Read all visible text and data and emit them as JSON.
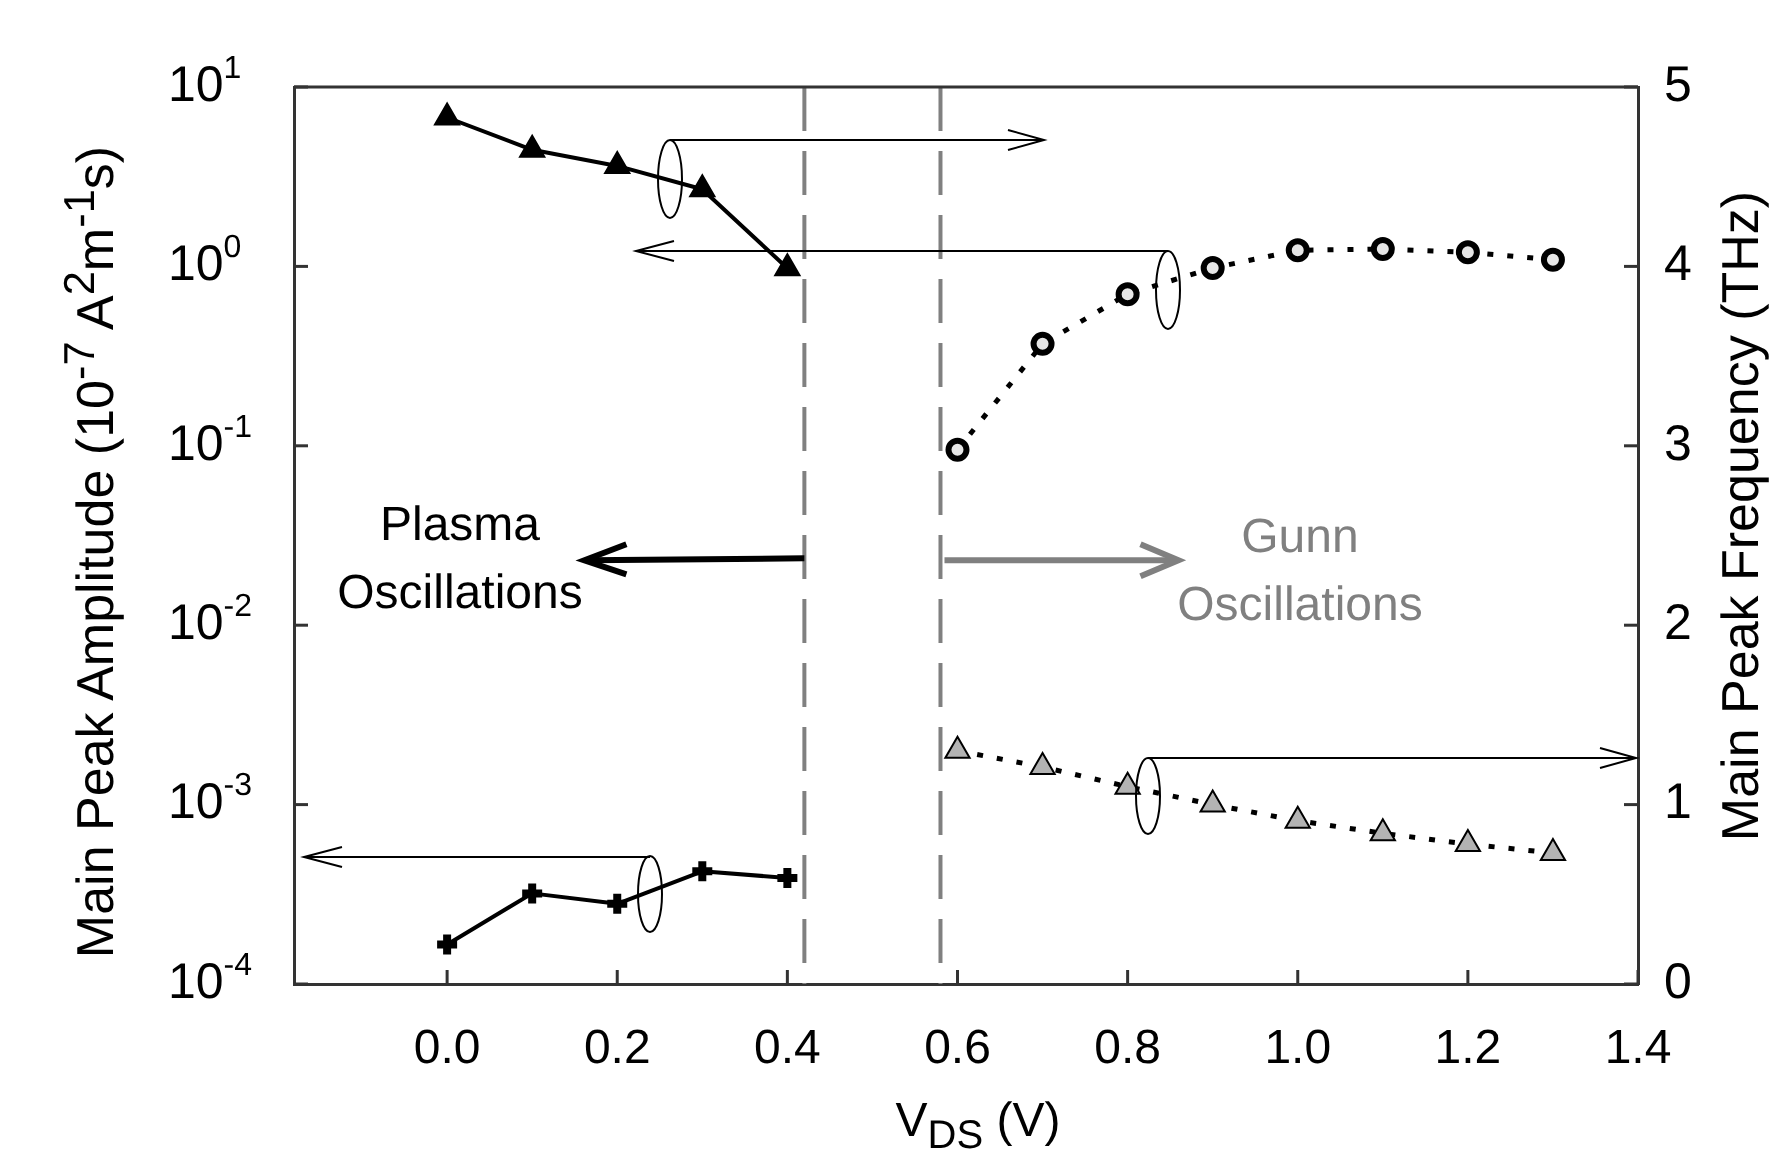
{
  "chart_data": {
    "type": "line",
    "xlabel": "V$_{DS}$ (V)",
    "ylabel": "Main Peak Amplitude (10$^{-7}$ A$^{2}$m$^{-1}$s)",
    "y2label": "Main Peak Frequency (THz)",
    "xlim": [
      -0.18,
      1.4
    ],
    "xticks": [
      {
        "value": 0,
        "label": "0.0"
      },
      0.2,
      0.4,
      0.6,
      0.8,
      {
        "value": 1,
        "label": "1.0"
      },
      1.2,
      1.4
    ],
    "ylim": [
      0.0001,
      10
    ],
    "yticks": [
      {
        "value": 0.0001,
        "label": "10$^{-4}$"
      },
      {
        "value": 0.001,
        "label": "10$^{-3}$"
      },
      {
        "value": 0.01,
        "label": "10$^{-2}$"
      },
      {
        "value": 0.1,
        "label": "10$^{-1}$"
      },
      {
        "value": 1,
        "label": "10$^{0}$"
      },
      {
        "value": 10,
        "label": "10$^{1}$"
      }
    ],
    "y2lim": [
      0,
      5
    ],
    "y2ticks": [
      0,
      1,
      2,
      3,
      4,
      5
    ],
    "log": "y",
    "grid": false,
    "legend": false,
    "series": [
      {
        "x": [
          0,
          0.1,
          0.2,
          0.3,
          0.4
        ],
        "values": [
          4.83,
          4.65,
          4.56,
          4.43,
          3.99
        ],
        "axis": "y2",
        "color": "#000000",
        "marker": "triangle",
        "line_style": "solid"
      },
      {
        "x": [
          0,
          0.1,
          0.2,
          0.3,
          0.4
        ],
        "values": [
          0.000166,
          0.00032,
          0.00028,
          0.000425,
          0.00039
        ],
        "color": "#000000",
        "marker": "cross",
        "line_style": "solid"
      },
      {
        "x": [
          0.6,
          0.7,
          0.8,
          0.9,
          1.0,
          1.1,
          1.2,
          1.3
        ],
        "values": [
          0.095,
          0.37,
          0.7,
          0.98,
          1.23,
          1.25,
          1.2,
          1.09
        ],
        "color": "#000000",
        "marker": "circle",
        "line_style": "dotted"
      },
      {
        "x": [
          0.6,
          0.7,
          0.8,
          0.9,
          1.0,
          1.1,
          1.2,
          1.3
        ],
        "values": [
          1.3,
          1.21,
          1.1,
          1.0,
          0.91,
          0.84,
          0.78,
          0.73
        ],
        "axis": "y2",
        "color": "#b3b3b3",
        "marker": "triangle",
        "line_style": "dotted"
      }
    ],
    "ref_lines": [
      {
        "axis": "x",
        "value": 0.42,
        "color": "#808080",
        "line_style": "dashed"
      },
      {
        "axis": "x",
        "value": 0.58,
        "color": "#808080",
        "line_style": "dashed"
      }
    ],
    "annotations": [
      "Plasma\nOscillations",
      {
        "text": "Gunn\nOscillations",
        "x": 0.58,
        "y": 0.023
      }
    ]
  }
}
